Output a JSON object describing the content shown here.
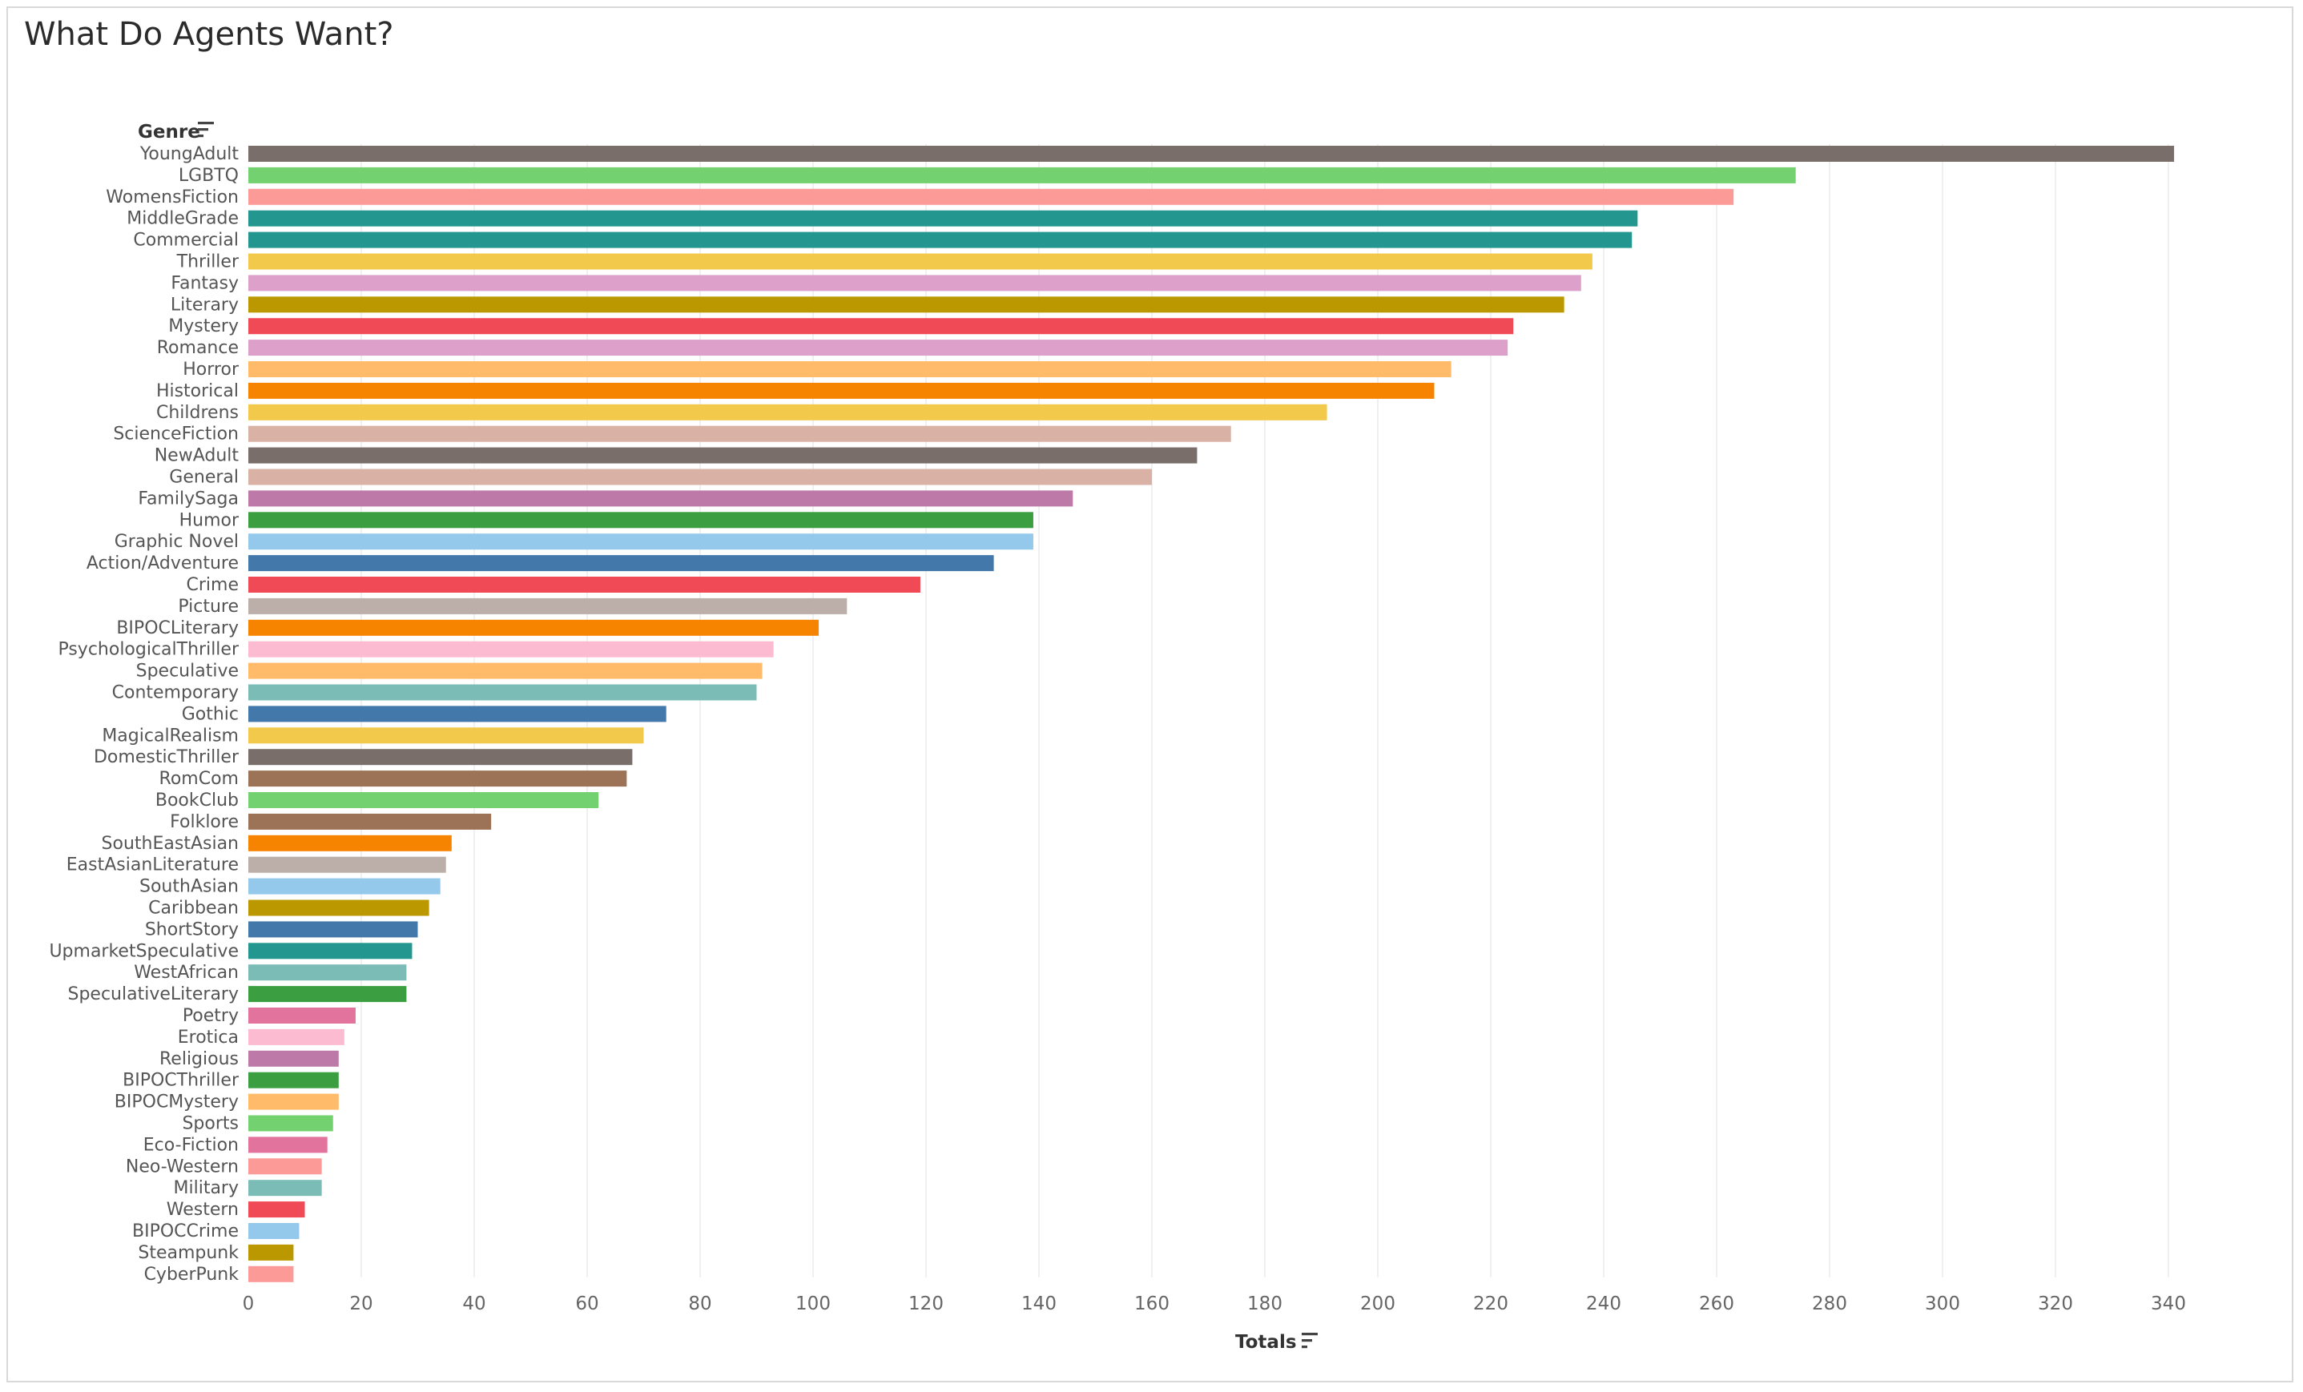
{
  "chart_data": {
    "type": "bar",
    "orientation": "horizontal",
    "title": "What Do Agents Want?",
    "ylabel": "Genre",
    "xlabel": "Totals",
    "xlim": [
      0,
      355
    ],
    "ticks": [
      0,
      20,
      40,
      60,
      80,
      100,
      120,
      140,
      160,
      180,
      200,
      220,
      240,
      260,
      280,
      300,
      320,
      340
    ],
    "grid": "vertical",
    "categories": [
      "YoungAdult",
      "LGBTQ",
      "WomensFiction",
      "MiddleGrade",
      "Commercial",
      "Thriller",
      "Fantasy",
      "Literary",
      "Mystery",
      "Romance",
      "Horror",
      "Historical",
      "Childrens",
      "ScienceFiction",
      "NewAdult",
      "General",
      "FamilySaga",
      "Humor",
      "Graphic Novel",
      "Action/Adventure",
      "Crime",
      "Picture",
      "BIPOCLiterary",
      "PsychologicalThriller",
      "Speculative",
      "Contemporary",
      "Gothic",
      "MagicalRealism",
      "DomesticThriller",
      "RomCom",
      "BookClub",
      "Folklore",
      "SouthEastAsian",
      "EastAsianLiterature",
      "SouthAsian",
      "Caribbean",
      "ShortStory",
      "UpmarketSpeculative",
      "WestAfrican",
      "SpeculativeLiterary",
      "Poetry",
      "Erotica",
      "Religious",
      "BIPOCThriller",
      "BIPOCMystery",
      "Sports",
      "Eco-Fiction",
      "Neo-Western",
      "Military",
      "Western",
      "BIPOCCrime",
      "Steampunk",
      "CyberPunk"
    ],
    "values": [
      341,
      274,
      263,
      246,
      245,
      238,
      236,
      233,
      224,
      223,
      213,
      210,
      191,
      174,
      168,
      160,
      146,
      139,
      139,
      132,
      119,
      106,
      101,
      93,
      91,
      90,
      74,
      70,
      68,
      67,
      62,
      43,
      36,
      35,
      34,
      32,
      30,
      29,
      28,
      28,
      19,
      17,
      16,
      16,
      16,
      15,
      14,
      13,
      13,
      10,
      9,
      8,
      8
    ],
    "colors": [
      "#7a6e6b",
      "#74d16f",
      "#fc9a97",
      "#22968f",
      "#22968f",
      "#f2c94a",
      "#dca0cb",
      "#bc9800",
      "#f04a56",
      "#dca0cb",
      "#ffba6a",
      "#f78400",
      "#f2c94a",
      "#dab2a5",
      "#7a6e6b",
      "#dab2a5",
      "#bd79a7",
      "#3b9f42",
      "#95c9ec",
      "#4378ab",
      "#f04a56",
      "#bcaea8",
      "#f78400",
      "#fdbbd2",
      "#ffba6a",
      "#7bbdb6",
      "#4378ab",
      "#f2c94a",
      "#7a6e6b",
      "#9d7358",
      "#74d16f",
      "#9d7358",
      "#f78400",
      "#bcaea8",
      "#95c9ec",
      "#bc9800",
      "#4378ab",
      "#22968f",
      "#7bbdb6",
      "#3b9f42",
      "#e2739c",
      "#fdbbd2",
      "#bd79a7",
      "#3b9f42",
      "#ffba6a",
      "#74d16f",
      "#e2739c",
      "#fc9a97",
      "#7bbdb6",
      "#f04a56",
      "#95c9ec",
      "#bc9800",
      "#fc9a97"
    ]
  }
}
